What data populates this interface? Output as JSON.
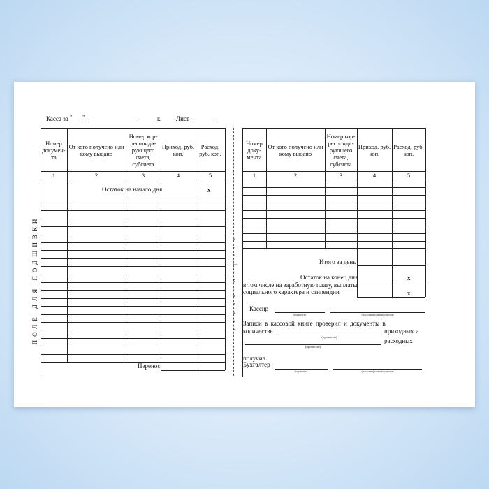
{
  "header": {
    "kassa_label": "Касса за",
    "quote_open": "\"",
    "quote_close": "\"",
    "year_suffix": "г.",
    "sheet_label": "Лист"
  },
  "columns": [
    {
      "title": "Номер докумен-та",
      "num": "1"
    },
    {
      "title": "От кого получено или кому выдано",
      "num": "2"
    },
    {
      "title": "Номер кор-респонди-рующего счета, субсчета",
      "num": "3"
    },
    {
      "title": "Приход, руб. коп.",
      "num": "4"
    },
    {
      "title": "Расход, руб. коп.",
      "num": "5"
    }
  ],
  "right_columns": [
    {
      "title": "Номер доку-мента"
    },
    {
      "title": "От кого получено или кому выдано"
    },
    {
      "title": "Номер кор-респонди-рующего счета, субсчета"
    },
    {
      "title": "Приход, руб. коп."
    },
    {
      "title": "Расход, руб. коп."
    }
  ],
  "left": {
    "opening_balance": "Остаток на начало дня",
    "x_mark": "x",
    "carry": "Перенос",
    "binding_field": "ПОЛЕ ДЛЯ ПОДШИВКИ"
  },
  "cut_line": "линия отреза",
  "right": {
    "total_day": "Итого за день",
    "closing_balance": "Остаток на конец дня",
    "including": "в том числе на заработную плату, выплаты",
    "including2": "социального характера и стипендии",
    "x_mark": "x",
    "cashier": "Кассир",
    "signature": "(подпись)",
    "signature_decode": "(расшифровка подписи)",
    "checked1": "Записи   в  кассовой  книге  проверил   и  документы   в",
    "quantity": "количестве",
    "in_words": "(прописью)",
    "incoming": "приходных и",
    "outgoing": "расходных",
    "received": "получил.",
    "accountant": "Бухгалтер"
  }
}
